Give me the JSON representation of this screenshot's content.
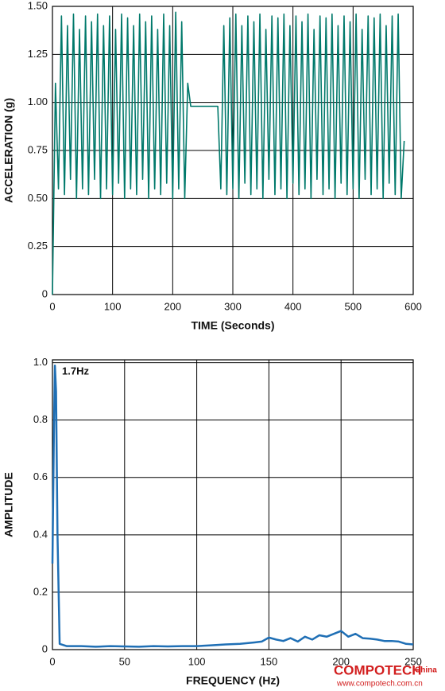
{
  "chart_data": [
    {
      "type": "line",
      "xlabel": "TIME (Seconds)",
      "ylabel": "ACCELERATION (g)",
      "xlim": [
        0,
        600
      ],
      "ylim": [
        0,
        1.5
      ],
      "xticks": [
        0,
        100,
        200,
        300,
        400,
        500,
        600
      ],
      "yticks": [
        0,
        0.25,
        {
          "value": 0.5,
          "label": "0.50"
        },
        0.75,
        {
          "value": 1,
          "label": "1.00"
        },
        1.25,
        {
          "value": 1.5,
          "label": "1.50"
        }
      ],
      "grid": true,
      "series": [
        {
          "color": "#00796b",
          "x": [
            0,
            5,
            10,
            15,
            20,
            25,
            30,
            35,
            40,
            45,
            50,
            55,
            60,
            65,
            70,
            75,
            80,
            85,
            90,
            95,
            100,
            105,
            110,
            115,
            120,
            125,
            130,
            135,
            140,
            145,
            150,
            155,
            160,
            165,
            170,
            175,
            180,
            185,
            190,
            195,
            200,
            205,
            210,
            215,
            220,
            225,
            230,
            235,
            240,
            245,
            250,
            255,
            260,
            265,
            270,
            275,
            280,
            285,
            290,
            295,
            300,
            305,
            310,
            315,
            320,
            325,
            330,
            335,
            340,
            345,
            350,
            355,
            360,
            365,
            370,
            375,
            380,
            385,
            390,
            395,
            400,
            405,
            410,
            415,
            420,
            425,
            430,
            435,
            440,
            445,
            450,
            455,
            460,
            465,
            470,
            475,
            480,
            485,
            490,
            495,
            500,
            505,
            510,
            515,
            520,
            525,
            530,
            535,
            540,
            545,
            550,
            555,
            560,
            565,
            570,
            575,
            580,
            585
          ],
          "values": [
            0,
            1.1,
            0.55,
            1.45,
            0.52,
            1.4,
            0.6,
            1.46,
            0.5,
            1.38,
            0.55,
            1.45,
            0.52,
            1.42,
            0.6,
            1.46,
            0.5,
            1.4,
            0.55,
            1.45,
            0.52,
            1.38,
            0.58,
            1.46,
            0.5,
            1.44,
            0.55,
            1.4,
            0.52,
            1.46,
            0.6,
            1.42,
            0.5,
            1.45,
            0.55,
            1.38,
            0.52,
            1.46,
            0.58,
            1.4,
            0.5,
            1.47,
            0.55,
            1.42,
            0.5,
            1.1,
            0.98,
            0.98,
            0.98,
            0.98,
            0.98,
            0.98,
            0.98,
            0.98,
            0.98,
            0.98,
            0.55,
            1.4,
            0.52,
            1.44,
            0.55,
            1.46,
            0.5,
            1.4,
            0.58,
            1.45,
            0.52,
            1.42,
            0.55,
            1.46,
            0.5,
            1.38,
            0.6,
            1.45,
            0.52,
            1.44,
            0.55,
            1.46,
            0.5,
            1.4,
            0.58,
            1.45,
            0.52,
            1.42,
            0.55,
            1.46,
            0.5,
            1.38,
            0.6,
            1.45,
            0.52,
            1.44,
            0.55,
            1.46,
            0.5,
            1.4,
            0.58,
            1.45,
            0.52,
            1.42,
            0.55,
            1.46,
            0.5,
            1.38,
            0.6,
            1.45,
            0.52,
            1.44,
            0.55,
            1.46,
            0.5,
            1.4,
            0.58,
            1.45,
            0.52,
            1.46,
            0.5,
            0.8
          ]
        }
      ]
    },
    {
      "type": "line",
      "xlabel": "FREQUENCY (Hz)",
      "ylabel": "AMPLITUDE",
      "annotation": "1.7Hz",
      "xlim": [
        0,
        250
      ],
      "ylim": [
        0,
        1.01
      ],
      "xticks": [
        0,
        50,
        100,
        150,
        200,
        250
      ],
      "yticks": [
        0,
        0.2,
        0.4,
        0.6,
        0.8,
        {
          "value": 1,
          "label": "1.0"
        }
      ],
      "grid": true,
      "series": [
        {
          "color": "#1f6fb5",
          "x": [
            0,
            1,
            1.7,
            2.5,
            3.5,
            5,
            10,
            20,
            30,
            40,
            50,
            60,
            70,
            80,
            90,
            100,
            110,
            120,
            130,
            140,
            145,
            150,
            155,
            160,
            165,
            170,
            175,
            180,
            185,
            190,
            195,
            200,
            205,
            210,
            215,
            220,
            225,
            230,
            235,
            240,
            245,
            250
          ],
          "values": [
            0.3,
            0.75,
            0.99,
            0.9,
            0.4,
            0.02,
            0.012,
            0.012,
            0.01,
            0.012,
            0.011,
            0.01,
            0.012,
            0.011,
            0.012,
            0.012,
            0.015,
            0.018,
            0.02,
            0.025,
            0.028,
            0.042,
            0.035,
            0.03,
            0.04,
            0.028,
            0.045,
            0.035,
            0.05,
            0.045,
            0.055,
            0.065,
            0.045,
            0.055,
            0.04,
            0.038,
            0.035,
            0.03,
            0.03,
            0.028,
            0.02,
            0.018
          ]
        }
      ]
    }
  ],
  "watermark": {
    "brand": "COMPOTECH",
    "region": "China",
    "url": "www.compotech.com.cn"
  }
}
